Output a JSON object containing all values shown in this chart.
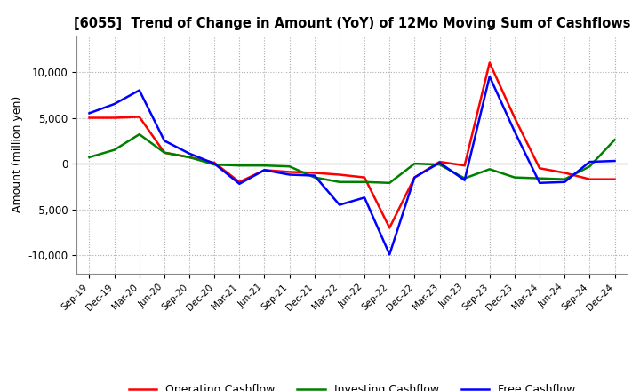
{
  "title": "[6055]  Trend of Change in Amount (YoY) of 12Mo Moving Sum of Cashflows",
  "ylabel": "Amount (million yen)",
  "x_labels": [
    "Sep-19",
    "Dec-19",
    "Mar-20",
    "Jun-20",
    "Sep-20",
    "Dec-20",
    "Mar-21",
    "Jun-21",
    "Sep-21",
    "Dec-21",
    "Mar-22",
    "Jun-22",
    "Sep-22",
    "Dec-22",
    "Mar-23",
    "Jun-23",
    "Sep-23",
    "Dec-23",
    "Mar-24",
    "Jun-24",
    "Sep-24",
    "Dec-24"
  ],
  "operating": [
    5000,
    5000,
    5100,
    1200,
    700,
    100,
    -2000,
    -700,
    -900,
    -1000,
    -1200,
    -1500,
    -7000,
    -1500,
    200,
    -200,
    11000,
    5000,
    -500,
    -1000,
    -1700,
    -1700
  ],
  "investing": [
    700,
    1500,
    3200,
    1200,
    700,
    -100,
    -200,
    -200,
    -300,
    -1500,
    -2000,
    -2000,
    -2100,
    0,
    -100,
    -1600,
    -600,
    -1500,
    -1600,
    -1700,
    -300,
    2600
  ],
  "free": [
    5500,
    6500,
    8000,
    2500,
    1100,
    0,
    -2200,
    -700,
    -1200,
    -1300,
    -4500,
    -3700,
    -9900,
    -1500,
    100,
    -1800,
    9500,
    3500,
    -2100,
    -2000,
    200,
    300
  ],
  "operating_color": "#ff0000",
  "investing_color": "#008000",
  "free_color": "#0000ff",
  "ylim": [
    -12000,
    14000
  ],
  "yticks": [
    -10000,
    -5000,
    0,
    5000,
    10000
  ],
  "background_color": "#ffffff",
  "grid_color": "#b0b0b0"
}
